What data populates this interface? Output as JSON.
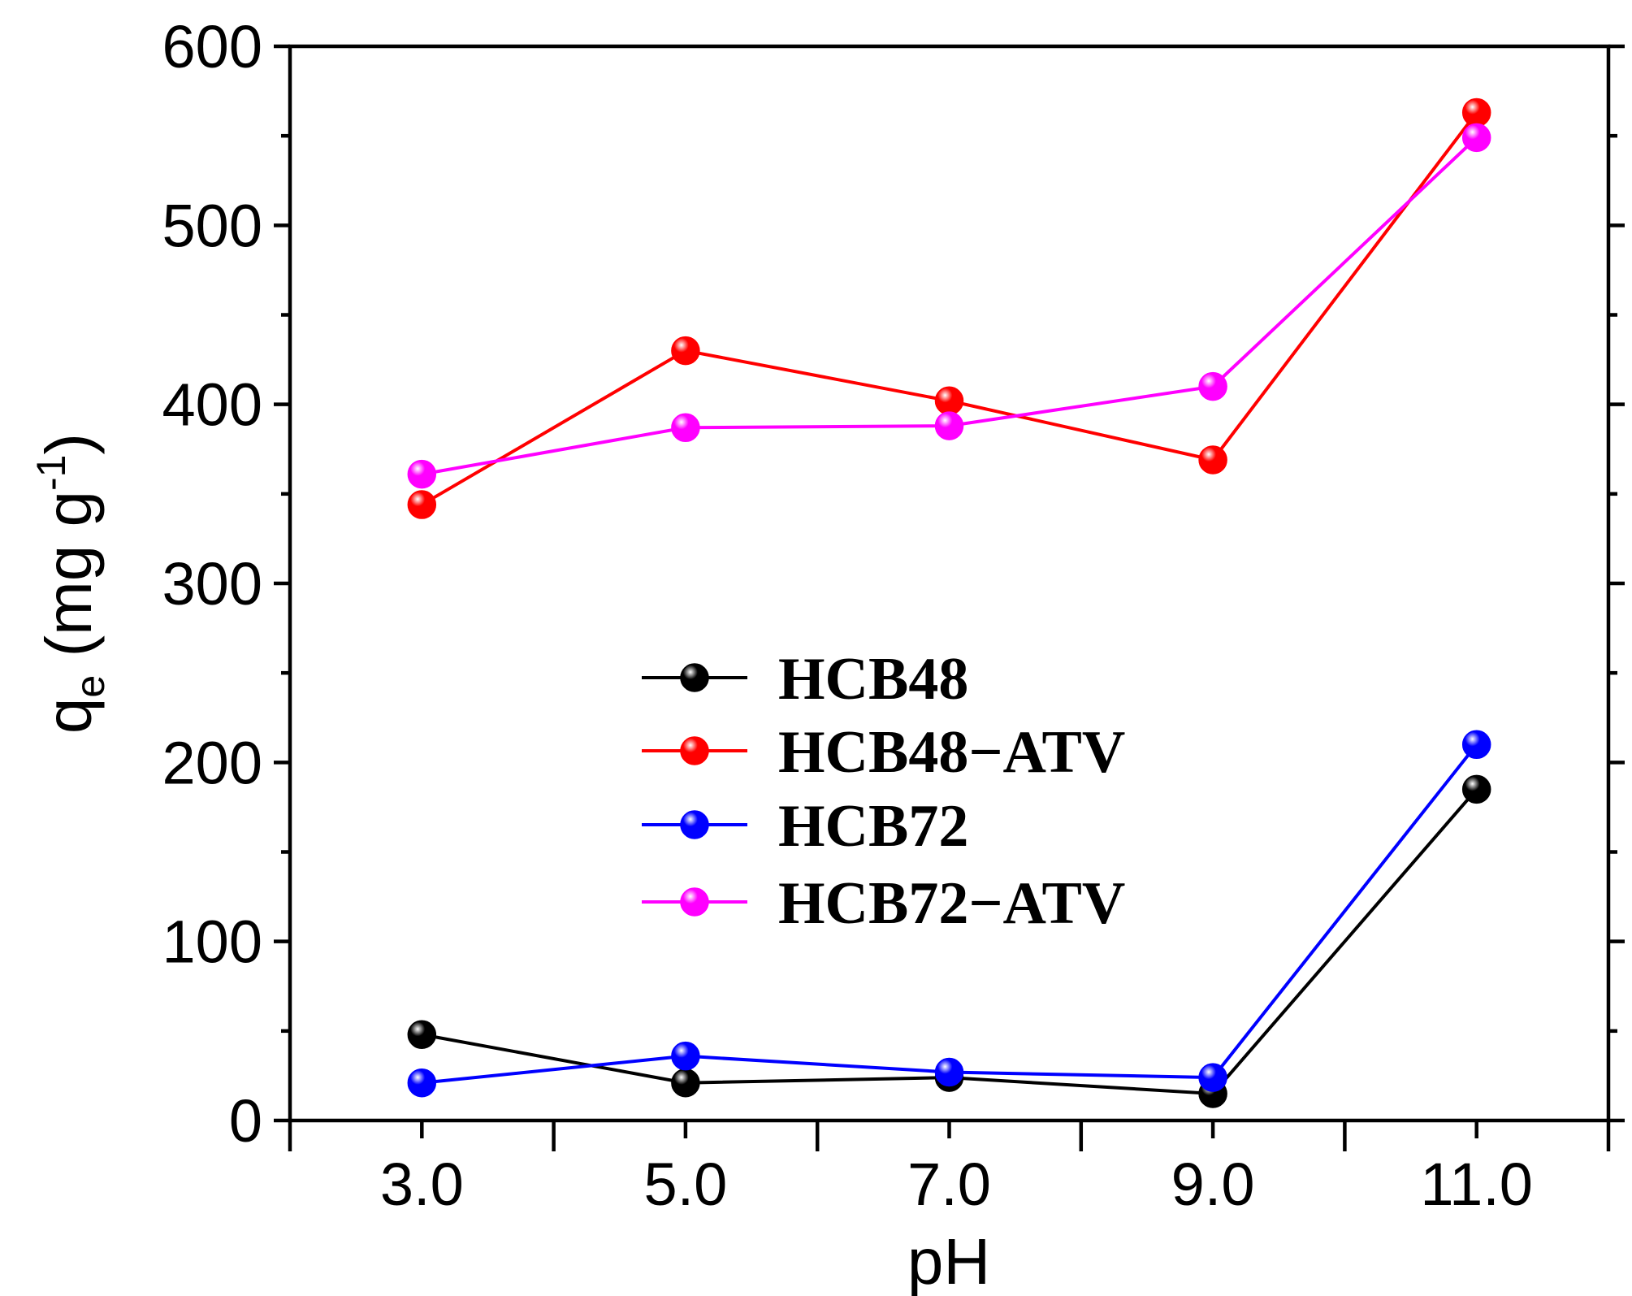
{
  "chart_data": {
    "type": "line",
    "title": "",
    "xlabel": "pH",
    "ylabel": {
      "main": "q",
      "sub": "e",
      "units": " (mg g",
      "sup": "-1",
      "close": ")"
    },
    "x": [
      3.0,
      5.0,
      7.0,
      9.0,
      11.0
    ],
    "x_tick_labels": [
      "3.0",
      "5.0",
      "7.0",
      "9.0",
      "11.0"
    ],
    "xlim": [
      2.0,
      12.0
    ],
    "ylim": [
      0,
      600
    ],
    "y_ticks": [
      0,
      100,
      200,
      300,
      400,
      500,
      600
    ],
    "y_tick_labels": [
      "0",
      "100",
      "200",
      "300",
      "400",
      "500",
      "600"
    ],
    "grid": false,
    "legend_position": "center",
    "series": [
      {
        "name": "HCB48",
        "color": "#000000",
        "values": [
          48,
          21,
          24,
          15,
          185
        ]
      },
      {
        "name": "HCB48−ATV",
        "color": "#ff0000",
        "values": [
          344,
          430,
          402,
          369,
          563
        ]
      },
      {
        "name": "HCB72",
        "color": "#0000ff",
        "values": [
          21,
          36,
          27,
          24,
          210
        ]
      },
      {
        "name": "HCB72−ATV",
        "color": "#ff00ff",
        "values": [
          361,
          387,
          388,
          410,
          549
        ]
      }
    ]
  }
}
